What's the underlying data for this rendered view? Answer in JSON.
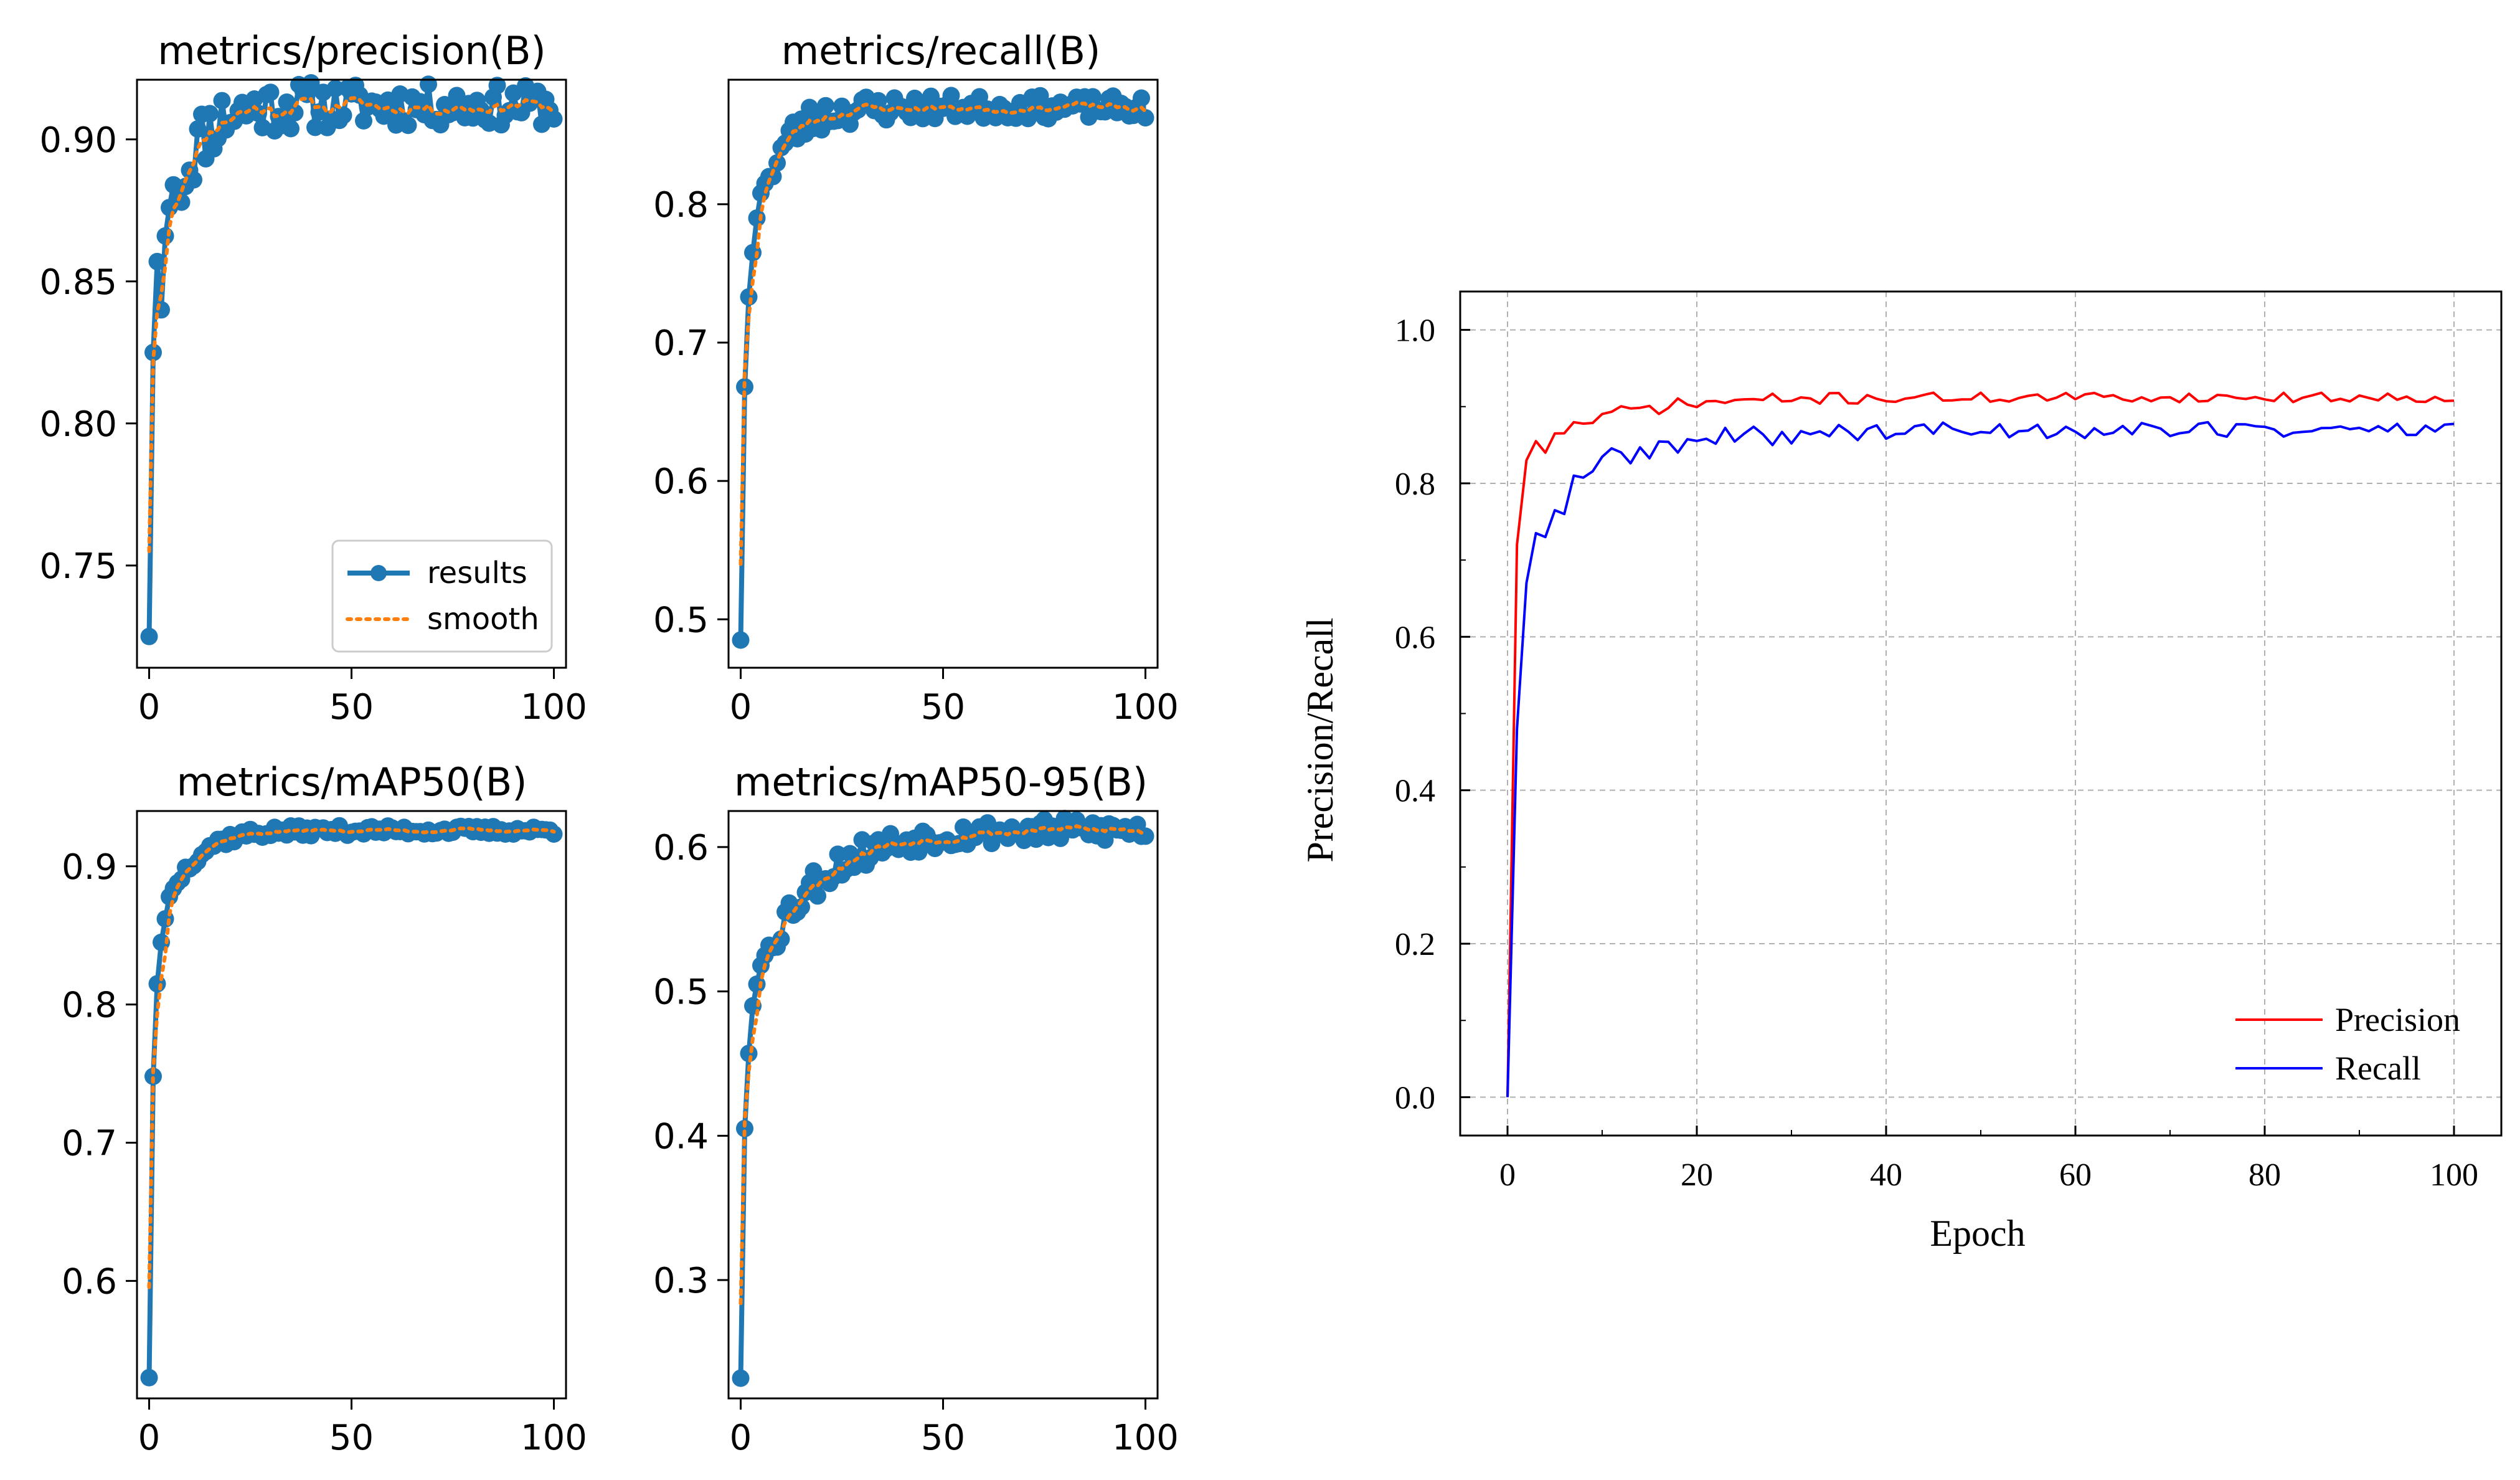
{
  "colors": {
    "results": "#1f77b4",
    "smooth": "#ff7f0e",
    "precision": "#ff0000",
    "recall": "#0000ff",
    "grid": "#b0b0b0",
    "axis": "#000000"
  },
  "chart_data": [
    {
      "id": "precision",
      "type": "line",
      "title": "metrics/precision(B)",
      "xlim": [
        -3,
        103
      ],
      "ylim": [
        0.714,
        0.921
      ],
      "xticks": [
        0,
        50,
        100
      ],
      "yticks": [
        0.75,
        0.8,
        0.85,
        0.9
      ],
      "ytick_labels": [
        "0.75",
        "0.80",
        "0.85",
        "0.90"
      ],
      "legend": {
        "placement": "bottom-right",
        "entries": [
          "results",
          "smooth"
        ]
      },
      "start": [
        0.725,
        0.825,
        0.857,
        0.84,
        0.866,
        0.876,
        0.884,
        0.879
      ],
      "plateau": 0.912,
      "rise_k": 0.18,
      "noise": 0.007,
      "seed": 11
    },
    {
      "id": "recall",
      "type": "line",
      "title": "metrics/recall(B)",
      "xlim": [
        -3,
        103
      ],
      "ylim": [
        0.465,
        0.89
      ],
      "xticks": [
        0,
        50,
        100
      ],
      "yticks": [
        0.5,
        0.6,
        0.7,
        0.8
      ],
      "ytick_labels": [
        "0.5",
        "0.6",
        "0.7",
        "0.8"
      ],
      "legend": null,
      "start": [
        0.485,
        0.668,
        0.733,
        0.765,
        0.79,
        0.808,
        0.815,
        0.82
      ],
      "plateau": 0.87,
      "rise_k": 0.16,
      "noise": 0.008,
      "seed": 23
    },
    {
      "id": "map50",
      "type": "line",
      "title": "metrics/mAP50(B)",
      "xlim": [
        -3,
        103
      ],
      "ylim": [
        0.515,
        0.94
      ],
      "xticks": [
        0,
        50,
        100
      ],
      "yticks": [
        0.6,
        0.7,
        0.8,
        0.9
      ],
      "ytick_labels": [
        "0.6",
        "0.7",
        "0.8",
        "0.9"
      ],
      "legend": null,
      "start": [
        0.53,
        0.748,
        0.815,
        0.845,
        0.862,
        0.878,
        0.884,
        0.888
      ],
      "plateau": 0.926,
      "rise_k": 0.15,
      "noise": 0.003,
      "seed": 37
    },
    {
      "id": "map50-95",
      "type": "line",
      "title": "metrics/mAP50-95(B)",
      "xlim": [
        -3,
        103
      ],
      "ylim": [
        0.218,
        0.625
      ],
      "xticks": [
        0,
        50,
        100
      ],
      "yticks": [
        0.3,
        0.4,
        0.5,
        0.6
      ],
      "ytick_labels": [
        "0.3",
        "0.4",
        "0.5",
        "0.6"
      ],
      "legend": null,
      "start": [
        0.232,
        0.405,
        0.457,
        0.49,
        0.505,
        0.518,
        0.525,
        0.532
      ],
      "plateau": 0.612,
      "rise_k": 0.07,
      "noise": 0.008,
      "seed": 53
    },
    {
      "id": "precision-recall",
      "type": "line",
      "title": "",
      "xlabel": "Epoch",
      "ylabel": "Precision/Recall",
      "xlim": [
        -5,
        105
      ],
      "ylim": [
        -0.05,
        1.05
      ],
      "xticks": [
        0,
        20,
        40,
        60,
        80,
        100
      ],
      "yticks": [
        0.0,
        0.2,
        0.4,
        0.6,
        0.8,
        1.0
      ],
      "ytick_labels": [
        "0.0",
        "0.2",
        "0.4",
        "0.6",
        "0.8",
        "1.0"
      ],
      "grid": true,
      "legend": {
        "placement": "bottom-right",
        "entries": [
          "Precision",
          "Recall"
        ]
      },
      "series": [
        {
          "name": "Precision",
          "start": [
            0.0,
            0.72,
            0.83,
            0.855,
            0.84,
            0.865
          ],
          "plateau": 0.912,
          "rise_k": 0.12,
          "noise": 0.006,
          "seed": 71
        },
        {
          "name": "Recall",
          "start": [
            0.0,
            0.48,
            0.67,
            0.735,
            0.73,
            0.765,
            0.76,
            0.81
          ],
          "plateau": 0.87,
          "rise_k": 0.1,
          "noise": 0.01,
          "seed": 89
        }
      ]
    }
  ]
}
